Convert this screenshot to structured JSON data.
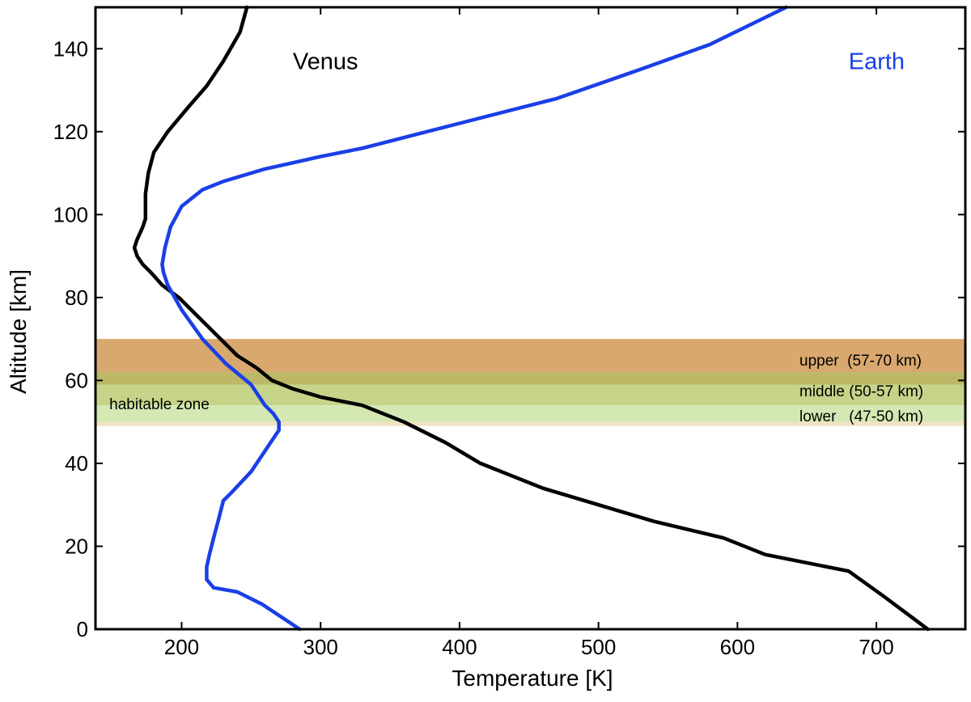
{
  "chart_data": {
    "type": "line",
    "xlabel": "Temperature [K]",
    "ylabel": "Altitude [km]",
    "xlim": [
      138,
      764
    ],
    "ylim": [
      0,
      150
    ],
    "x_ticks": [
      200,
      300,
      400,
      500,
      600,
      700
    ],
    "y_ticks": [
      0,
      20,
      40,
      60,
      80,
      100,
      120,
      140
    ],
    "grid": false,
    "series": [
      {
        "name": "Venus",
        "color": "#000000",
        "points": [
          [
            737,
            0
          ],
          [
            705,
            8
          ],
          [
            680,
            14
          ],
          [
            620,
            18
          ],
          [
            590,
            22
          ],
          [
            540,
            26
          ],
          [
            500,
            30
          ],
          [
            460,
            34
          ],
          [
            415,
            40
          ],
          [
            390,
            45
          ],
          [
            360,
            50
          ],
          [
            330,
            54
          ],
          [
            300,
            56
          ],
          [
            280,
            58
          ],
          [
            265,
            60
          ],
          [
            254,
            63
          ],
          [
            240,
            66
          ],
          [
            225,
            71
          ],
          [
            210,
            76
          ],
          [
            198,
            80
          ],
          [
            186,
            83
          ],
          [
            178,
            86
          ],
          [
            172,
            88
          ],
          [
            168,
            90
          ],
          [
            166,
            92
          ],
          [
            168,
            94
          ],
          [
            172,
            97
          ],
          [
            174,
            99
          ],
          [
            174,
            101
          ],
          [
            174,
            105
          ],
          [
            176,
            110
          ],
          [
            180,
            115
          ],
          [
            190,
            120
          ],
          [
            205,
            126
          ],
          [
            218,
            131
          ],
          [
            230,
            137
          ],
          [
            242,
            144
          ],
          [
            247,
            150
          ]
        ]
      },
      {
        "name": "Earth",
        "color": "#1a3fe6",
        "points": [
          [
            285,
            0
          ],
          [
            258,
            6
          ],
          [
            240,
            9
          ],
          [
            223,
            10
          ],
          [
            218,
            12
          ],
          [
            218,
            15
          ],
          [
            220,
            18
          ],
          [
            223,
            22
          ],
          [
            227,
            27
          ],
          [
            230,
            31
          ],
          [
            236,
            33
          ],
          [
            250,
            38
          ],
          [
            264,
            45
          ],
          [
            270,
            48
          ],
          [
            270,
            50
          ],
          [
            266,
            52
          ],
          [
            260,
            54
          ],
          [
            250,
            59
          ],
          [
            232,
            64
          ],
          [
            215,
            70
          ],
          [
            200,
            77
          ],
          [
            190,
            83
          ],
          [
            187,
            86
          ],
          [
            186,
            88
          ],
          [
            188,
            92
          ],
          [
            192,
            97
          ],
          [
            200,
            102
          ],
          [
            215,
            106
          ],
          [
            230,
            108
          ],
          [
            260,
            111
          ],
          [
            300,
            114
          ],
          [
            330,
            116
          ],
          [
            400,
            122
          ],
          [
            470,
            128
          ],
          [
            530,
            135
          ],
          [
            580,
            141
          ],
          [
            635,
            150
          ]
        ]
      }
    ],
    "annotations": [
      {
        "text": "Venus",
        "x": 280,
        "y": 137,
        "color": "#000000"
      },
      {
        "text": "Earth",
        "x": 680,
        "y": 137,
        "color": "#1a3fe6"
      },
      {
        "text": "habitable zone",
        "x": 148,
        "y": 55,
        "color": "#000000"
      }
    ],
    "bands": [
      {
        "label": "upper  (57-70 km)",
        "from": 57,
        "to": 70,
        "label_y": 65,
        "color": "#d9a45e"
      },
      {
        "label": "middle (50-57 km)",
        "from": 50,
        "to": 57,
        "label_y": 57.5,
        "color": "#bcce72"
      },
      {
        "label": "lower   (47-50 km)",
        "from": 47,
        "to": 50,
        "label_y": 51.5,
        "color": "#d3e8b2"
      }
    ],
    "band_rects": [
      {
        "from": 62,
        "to": 70,
        "color": "#d9a86e"
      },
      {
        "from": 59,
        "to": 62,
        "color": "#bcb866"
      },
      {
        "from": 54,
        "to": 59,
        "color": "#c6d489"
      },
      {
        "from": 50,
        "to": 54,
        "color": "#d3e8b2"
      },
      {
        "from": 49,
        "to": 50,
        "color": "#f2e2c2"
      }
    ]
  }
}
